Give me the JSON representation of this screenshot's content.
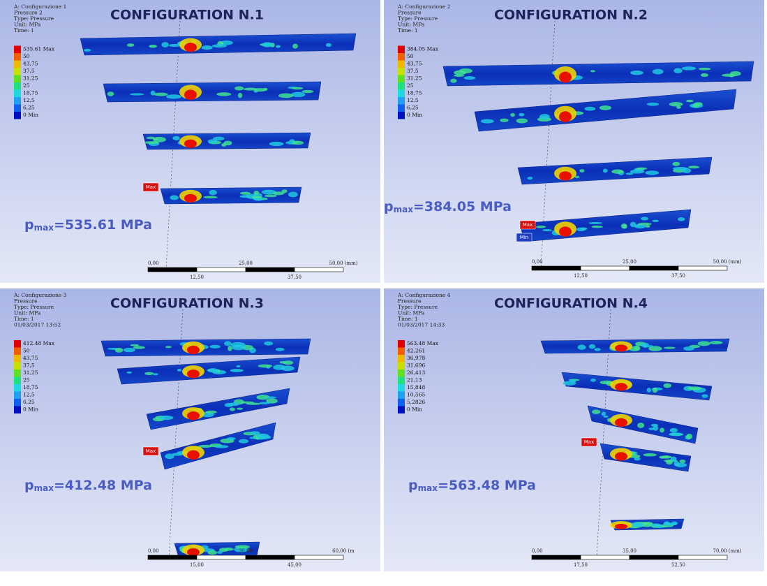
{
  "panels": [
    {
      "info": [
        "A: Configurazione 1",
        "Pressure 2",
        "Type: Pressure",
        "Unit: MPa",
        "Time: 1"
      ],
      "legend": [
        "535.61 Max",
        "50",
        "43,75",
        "37,5",
        "31,25",
        "25",
        "18,75",
        "12,5",
        "6,25",
        "0 Min"
      ],
      "title": "CONFIGURATION N.1",
      "pmax": {
        "symbol": "p",
        "subscript": "max",
        "text": "=535.61 MPa"
      },
      "scale_top": [
        "0,00",
        "25,00",
        "50,00 (mm)"
      ],
      "scale_bottom": [
        "12,50",
        "37,50"
      ],
      "markers": [
        "Max"
      ]
    },
    {
      "info": [
        "A: Configurazione 2",
        "Pressure",
        "Type: Pressure",
        "Unit: MPa",
        "Time: 1"
      ],
      "legend": [
        "384.05 Max",
        "50",
        "43,75",
        "37,5",
        "31,25",
        "25",
        "18,75",
        "12,5",
        "6,25",
        "0 Min"
      ],
      "title": "CONFIGURATION N.2",
      "pmax": {
        "symbol": "p",
        "subscript": "max",
        "text": "=384.05 MPa"
      },
      "scale_top": [
        "0,00",
        "25,00",
        "50,00 (mm)"
      ],
      "scale_bottom": [
        "12,50",
        "37,50"
      ],
      "markers": [
        "Max",
        "Min"
      ]
    },
    {
      "info": [
        "A: Configurazione 3",
        "Pressure",
        "Type: Pressure",
        "Unit: MPa",
        "Time: 1",
        "01/03/2017 13:52"
      ],
      "legend": [
        "412.48 Max",
        "50",
        "43,75",
        "37,5",
        "31,25",
        "25",
        "18,75",
        "12,5",
        "6,25",
        "0 Min"
      ],
      "title": "CONFIGURATION N.3",
      "pmax": {
        "symbol": "p",
        "subscript": "max",
        "text": "=412.48 MPa"
      },
      "scale_top": [
        "0,00",
        "30,00",
        "60,00 (m"
      ],
      "scale_bottom": [
        "15,00",
        "45,00"
      ],
      "markers": [
        "Max"
      ]
    },
    {
      "info": [
        "A: Configurazione 4",
        "Pressure",
        "Type: Pressure",
        "Unit: MPa",
        "Time: 1",
        "01/03/2017 14:33"
      ],
      "legend": [
        "563.48 Max",
        "42,261",
        "36,978",
        "31,696",
        "26,413",
        "21,13",
        "15,848",
        "10,565",
        "5,2826",
        "0 Min"
      ],
      "title": "CONFIGURATION N.4",
      "pmax": {
        "symbol": "p",
        "subscript": "max",
        "text": "=563.48 MPa"
      },
      "scale_top": [
        "0,00",
        "35,00",
        "70,00 (mm)"
      ],
      "scale_bottom": [
        "17,50",
        "52,50"
      ],
      "markers": [
        "Max"
      ]
    }
  ]
}
